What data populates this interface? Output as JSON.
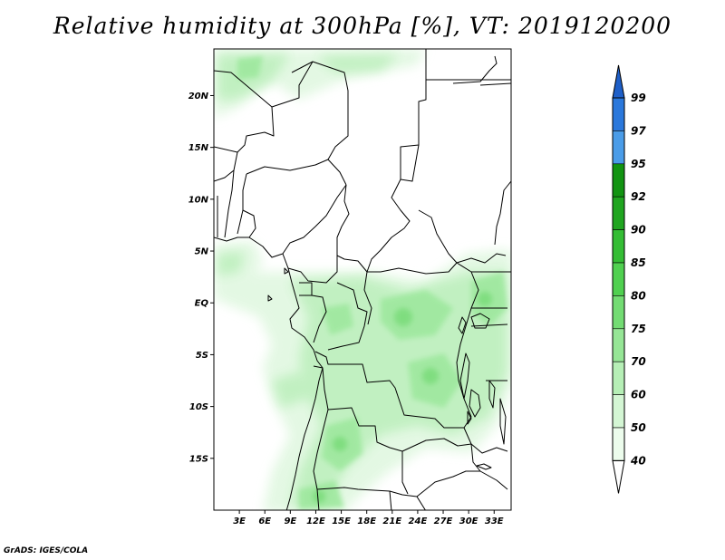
{
  "title": "Relative humidity at 300hPa [%], VT: 2019120200",
  "footer": "GrADS: IGES/COLA",
  "map": {
    "field": "Relative humidity",
    "level": "300hPa",
    "unit": "%",
    "valid_time": "2019120200",
    "lat_ticks": [
      "20N",
      "15N",
      "10N",
      "5N",
      "EQ",
      "5S",
      "10S",
      "15S"
    ],
    "lon_ticks": [
      "3E",
      "6E",
      "9E",
      "12E",
      "15E",
      "18E",
      "21E",
      "24E",
      "27E",
      "30E",
      "33E"
    ],
    "lon_range": [
      0,
      35
    ],
    "lat_range": [
      -20,
      24.5
    ]
  },
  "colorbar": {
    "labels": [
      "99",
      "97",
      "95",
      "92",
      "90",
      "85",
      "80",
      "75",
      "70",
      "60",
      "50",
      "40"
    ],
    "colors": {
      "above_99": "#1e5fc8",
      "97_99": "#2a78dc",
      "95_97": "#4a9ce8",
      "92_95": "#129412",
      "90_92": "#1fa51f",
      "85_90": "#34bd34",
      "80_85": "#50d050",
      "75_80": "#73dc73",
      "70_75": "#96e696",
      "60_70": "#b6efb6",
      "50_60": "#d4f6d4",
      "40_50": "#ecfcec",
      "below_40": "#ffffff"
    }
  }
}
